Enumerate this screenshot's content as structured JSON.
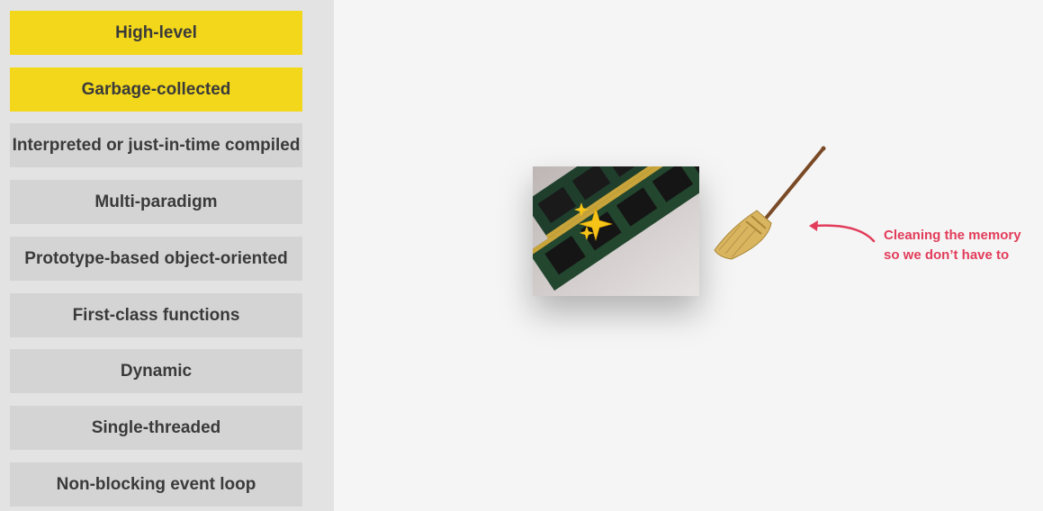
{
  "features": [
    {
      "label": "High-level",
      "active": true
    },
    {
      "label": "Garbage-collected",
      "active": true
    },
    {
      "label": "Interpreted or just-in-time compiled",
      "active": false
    },
    {
      "label": "Multi-paradigm",
      "active": false
    },
    {
      "label": "Prototype-based object-oriented",
      "active": false
    },
    {
      "label": "First-class functions",
      "active": false
    },
    {
      "label": "Dynamic",
      "active": false
    },
    {
      "label": "Single-threaded",
      "active": false
    },
    {
      "label": "Non-blocking event loop",
      "active": false
    }
  ],
  "colors": {
    "highlight": "#f2d71b",
    "inactive": "#d4d4d4",
    "annotation": "#e23c5a"
  },
  "annotation": {
    "line1": "Cleaning the memory",
    "line2": "so we don’t have to"
  },
  "icons": {
    "memory": "ram-module-icon",
    "sparkles": "sparkles-icon",
    "broom": "broom-icon",
    "arrow": "curved-arrow-icon"
  }
}
